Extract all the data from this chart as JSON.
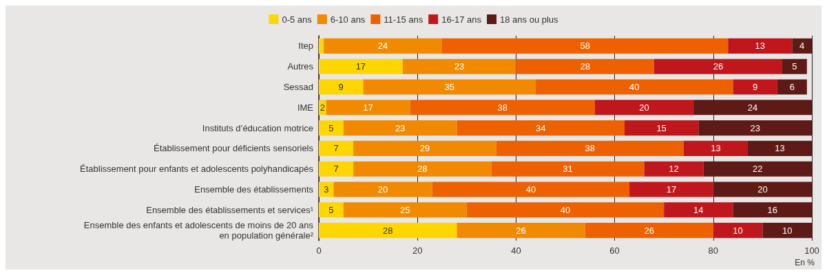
{
  "chart_data": {
    "type": "bar",
    "orientation": "horizontal",
    "stacked": true,
    "categories": [
      "Itep",
      "Autres",
      "Sessad",
      "IME",
      "Instituts d’éducation motrice",
      "Établissement pour déficients sensoriels",
      "Établissement pour enfants et adolescents polyhandicapés",
      "Ensemble des établissements",
      "Ensemble des établissements et services¹",
      "Ensemble des enfants et adolescents de moins de 20 ans\nen population générale²"
    ],
    "series": [
      {
        "name": "0-5 ans",
        "color": "#ffd600",
        "values": [
          1,
          17,
          9,
          1.5,
          5,
          7,
          7,
          3,
          5,
          28
        ],
        "value_labels": [
          null,
          "17",
          "9",
          "2",
          "5",
          "7",
          "7",
          "3",
          "5",
          "28"
        ]
      },
      {
        "name": "6-10 ans",
        "color": "#f18a00",
        "values": [
          24,
          23,
          35,
          17,
          23,
          29,
          28,
          20,
          25,
          26
        ],
        "value_labels": [
          "24",
          "23",
          "35",
          "17",
          "23",
          "29",
          "28",
          "20",
          "25",
          "26"
        ]
      },
      {
        "name": "11-15 ans",
        "color": "#ee6100",
        "values": [
          58,
          28,
          40,
          37.5,
          34,
          38,
          31,
          40,
          40,
          26
        ],
        "value_labels": [
          "58",
          "28",
          "40",
          "38",
          "34",
          "38",
          "31",
          "40",
          "40",
          "26"
        ]
      },
      {
        "name": "16-17 ans",
        "color": "#c0171d",
        "values": [
          13,
          26,
          9,
          20,
          15,
          13,
          12,
          17,
          14,
          10
        ],
        "value_labels": [
          "13",
          "26",
          "9",
          "20",
          "15",
          "13",
          "12",
          "17",
          "14",
          "10"
        ]
      },
      {
        "name": "18 ans ou plus",
        "color": "#5e1a16",
        "values": [
          4,
          5,
          6,
          24,
          23,
          13,
          22,
          20,
          16,
          10
        ],
        "value_labels": [
          "4",
          "5",
          "6",
          "24",
          "23",
          "13",
          "22",
          "20",
          "16",
          "10"
        ]
      }
    ],
    "xlim": [
      0,
      100
    ],
    "xticks": [
      0,
      20,
      40,
      60,
      80,
      100
    ],
    "xlabel": "En %",
    "grid": "x",
    "legend": "top"
  }
}
